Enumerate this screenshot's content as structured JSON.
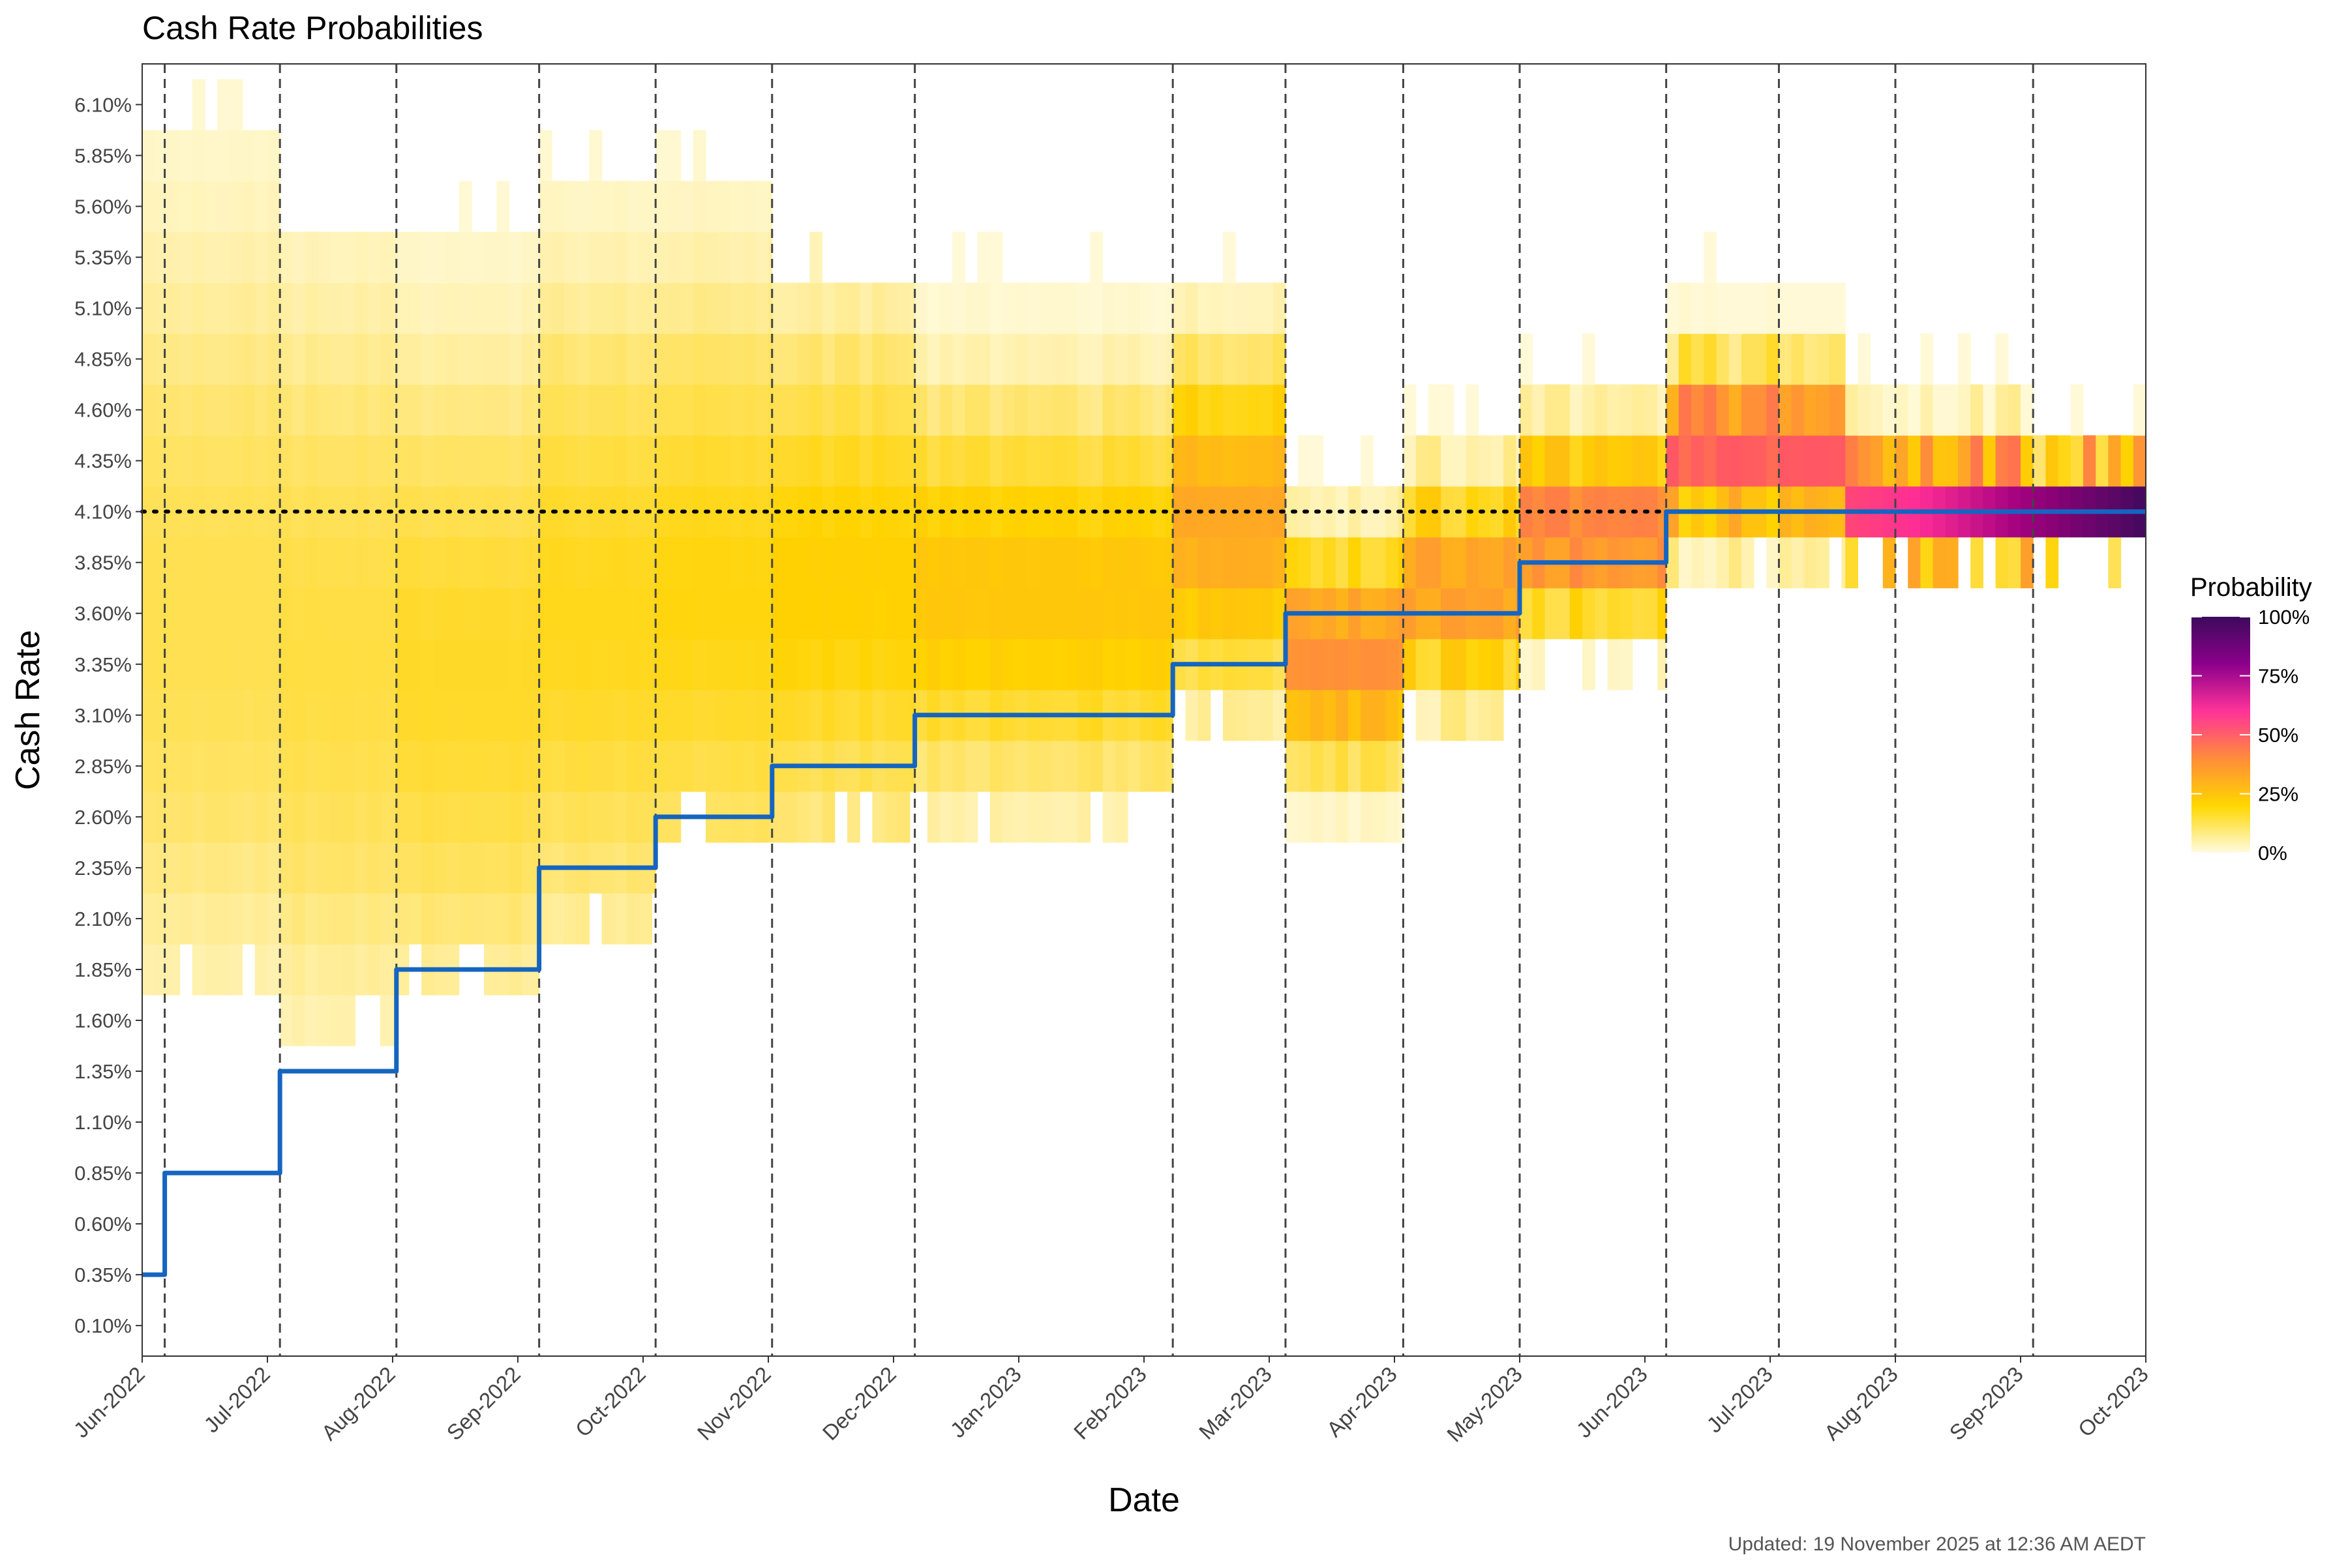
{
  "chart_data": {
    "type": "heatmap",
    "title": "Cash Rate Probabilities",
    "xlabel": "Date",
    "ylabel": "Cash Rate",
    "caption": "Updated: 19 November 2025 at 12:36 AM AEDT",
    "x_range_months": [
      0,
      16
    ],
    "x_tick_labels": [
      "Jun-2022",
      "Jul-2022",
      "Aug-2022",
      "Sep-2022",
      "Oct-2022",
      "Nov-2022",
      "Dec-2022",
      "Jan-2023",
      "Feb-2023",
      "Mar-2023",
      "Apr-2023",
      "May-2023",
      "Jun-2023",
      "Jul-2023",
      "Aug-2023",
      "Sep-2023",
      "Oct-2023"
    ],
    "y_range": [
      -0.05,
      6.3
    ],
    "y_tick_values": [
      0.1,
      0.35,
      0.6,
      0.85,
      1.1,
      1.35,
      1.6,
      1.85,
      2.1,
      2.35,
      2.6,
      2.85,
      3.1,
      3.35,
      3.6,
      3.85,
      4.1,
      4.35,
      4.6,
      4.85,
      5.1,
      5.35,
      5.6,
      5.85,
      6.1
    ],
    "y_tick_labels": [
      "0.10%",
      "0.35%",
      "0.60%",
      "0.85%",
      "1.10%",
      "1.35%",
      "1.60%",
      "1.85%",
      "2.10%",
      "2.35%",
      "2.60%",
      "2.85%",
      "3.10%",
      "3.35%",
      "3.60%",
      "3.85%",
      "4.10%",
      "4.35%",
      "4.60%",
      "4.85%",
      "5.10%",
      "5.35%",
      "5.60%",
      "5.85%",
      "6.10%"
    ],
    "meeting_dates_months": [
      0.18,
      1.1,
      2.03,
      3.17,
      4.1,
      5.03,
      6.17,
      8.23,
      9.13,
      10.07,
      11.0,
      12.17,
      13.07,
      14.0,
      15.1
    ],
    "reference_rate": 4.1,
    "cash_rate_steps": [
      {
        "from": 0.0,
        "to": 0.18,
        "rate": 0.35
      },
      {
        "from": 0.18,
        "to": 1.1,
        "rate": 0.85
      },
      {
        "from": 1.1,
        "to": 2.03,
        "rate": 1.35
      },
      {
        "from": 2.03,
        "to": 3.17,
        "rate": 1.85
      },
      {
        "from": 3.17,
        "to": 4.1,
        "rate": 2.35
      },
      {
        "from": 4.1,
        "to": 5.03,
        "rate": 2.6
      },
      {
        "from": 5.03,
        "to": 6.17,
        "rate": 2.85
      },
      {
        "from": 6.17,
        "to": 8.23,
        "rate": 3.1
      },
      {
        "from": 8.23,
        "to": 9.13,
        "rate": 3.35
      },
      {
        "from": 9.13,
        "to": 10.07,
        "rate": 3.6
      },
      {
        "from": 10.07,
        "to": 11.0,
        "rate": 3.6
      },
      {
        "from": 11.0,
        "to": 12.17,
        "rate": 3.85
      },
      {
        "from": 12.17,
        "to": 16.0,
        "rate": 4.1
      }
    ],
    "probability_segments": [
      {
        "from": 0.0,
        "to": 1.1,
        "center": 3.6,
        "spread": 1.15,
        "peak": 0.07,
        "min": 1.85,
        "max": 5.85
      },
      {
        "from": 1.1,
        "to": 2.03,
        "center": 3.4,
        "spread": 1.1,
        "peak": 0.08,
        "min": 1.6,
        "max": 5.35
      },
      {
        "from": 2.03,
        "to": 3.17,
        "center": 3.3,
        "spread": 0.95,
        "peak": 0.1,
        "min": 1.85,
        "max": 5.35
      },
      {
        "from": 3.17,
        "to": 4.1,
        "center": 3.6,
        "spread": 0.95,
        "peak": 0.11,
        "min": 2.1,
        "max": 5.6
      },
      {
        "from": 4.1,
        "to": 5.03,
        "center": 3.7,
        "spread": 0.9,
        "peak": 0.12,
        "min": 2.6,
        "max": 5.6
      },
      {
        "from": 5.03,
        "to": 6.17,
        "center": 3.75,
        "spread": 0.75,
        "peak": 0.14,
        "min": 2.6,
        "max": 5.1
      },
      {
        "from": 6.17,
        "to": 8.23,
        "center": 3.7,
        "spread": 0.55,
        "peak": 0.17,
        "min": 2.6,
        "max": 5.1
      },
      {
        "from": 8.23,
        "to": 9.13,
        "center": 4.05,
        "spread": 0.45,
        "peak": 0.26,
        "min": 3.1,
        "max": 5.1
      },
      {
        "from": 9.13,
        "to": 10.07,
        "center": 3.4,
        "spread": 0.3,
        "peak": 0.33,
        "min": 2.6,
        "max": 4.1
      },
      {
        "from": 10.07,
        "to": 11.0,
        "center": 3.72,
        "spread": 0.28,
        "peak": 0.3,
        "min": 3.1,
        "max": 4.35
      },
      {
        "from": 11.0,
        "to": 12.17,
        "center": 4.0,
        "spread": 0.25,
        "peak": 0.38,
        "min": 3.35,
        "max": 4.6
      },
      {
        "from": 12.17,
        "to": 13.6,
        "center": 4.4,
        "spread": 0.22,
        "peak": 0.48,
        "min": 3.85,
        "max": 5.1
      },
      {
        "from": 13.6,
        "to": 15.1,
        "center": 4.12,
        "spread": 0.17,
        "peak": 0.62,
        "min": 3.85,
        "max": 4.6
      },
      {
        "from": 15.1,
        "to": 16.0,
        "center": 4.1,
        "spread": 0.13,
        "peak": 0.9,
        "min": 3.85,
        "max": 4.35
      }
    ],
    "legend": {
      "title": "Probability",
      "placement": "right",
      "tick_labels": [
        "100%",
        "75%",
        "50%",
        "25%",
        "0%"
      ],
      "tick_values": [
        1.0,
        0.75,
        0.5,
        0.25,
        0.0
      ]
    },
    "colors": {
      "step_line": "#1565c0",
      "reference_line": "#000000",
      "meeting_lines": "#444444",
      "panel_border": "#333333",
      "scale": [
        "#fffbe0",
        "#ffd700",
        "#ff8c3a",
        "#ff3399",
        "#8b008b",
        "#3d0a5c"
      ]
    }
  }
}
